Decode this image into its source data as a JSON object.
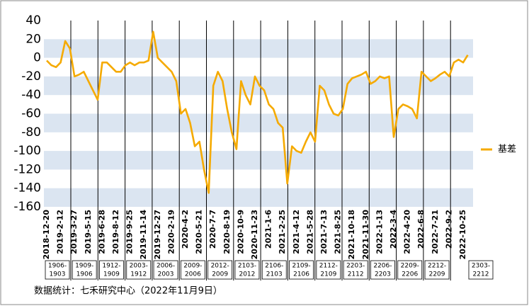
{
  "chart_data": {
    "type": "line",
    "categories": [
      "2018-12-20",
      null,
      null,
      "2019-2-12",
      null,
      null,
      "2019-3-27",
      null,
      null,
      "2019-5-15",
      null,
      null,
      "2019-6-28",
      null,
      null,
      "2019-8-12",
      null,
      null,
      "2019-9-25",
      null,
      null,
      "2019-11-14",
      null,
      null,
      "2019-12-27",
      null,
      null,
      "2020-2-19",
      null,
      null,
      "2020-4-2",
      null,
      null,
      "2020-5-21",
      null,
      null,
      "2020-7-7",
      null,
      null,
      "2020-8-19",
      null,
      null,
      "2020-10-9",
      null,
      null,
      "2020-11-23",
      null,
      null,
      "2021-1-6",
      null,
      null,
      "2021-2-25",
      null,
      null,
      "2021-4-12",
      null,
      null,
      "2021-5-28",
      null,
      null,
      "2021-7-13",
      null,
      null,
      "2021-8-25",
      null,
      null,
      "2021-10-18",
      null,
      null,
      "2021-11-30",
      null,
      null,
      "2022-1-13",
      null,
      null,
      "2022-3-4",
      null,
      null,
      "2022-4-20",
      null,
      null,
      "2022-6-8",
      null,
      null,
      "2022-7-21",
      null,
      null,
      "2022-9-2",
      null,
      null,
      "2022-10-25",
      null
    ],
    "series": [
      {
        "name": "基差",
        "color": "#f5aa00",
        "values": [
          -3,
          -8,
          -10,
          -5,
          18,
          10,
          -20,
          -18,
          -15,
          -25,
          -35,
          -45,
          -5,
          -5,
          -10,
          -15,
          -15,
          -8,
          -5,
          -8,
          -5,
          -5,
          -3,
          28,
          0,
          -5,
          -10,
          -15,
          -25,
          -60,
          -55,
          -70,
          -95,
          -90,
          -120,
          -145,
          -30,
          -15,
          -25,
          -55,
          -80,
          -98,
          -25,
          -40,
          -50,
          -20,
          -30,
          -35,
          -50,
          -55,
          -70,
          -75,
          -135,
          -95,
          -100,
          -102,
          -90,
          -80,
          -90,
          -30,
          -35,
          -50,
          -60,
          -62,
          -55,
          -28,
          -22,
          -20,
          -18,
          -15,
          -28,
          -25,
          -20,
          -22,
          -20,
          -85,
          -55,
          -50,
          -52,
          -55,
          -65,
          -15,
          -20,
          -25,
          -22,
          -18,
          -15,
          -20,
          -5,
          -2,
          -5,
          3
        ]
      }
    ],
    "ylim": [
      -160,
      40
    ],
    "yticks": [
      40,
      20,
      0,
      -20,
      -40,
      -60,
      -80,
      -100,
      -120,
      -140,
      -160
    ],
    "grid": "bands",
    "legend": "right",
    "periods": [
      [
        "1906-",
        "1903"
      ],
      [
        "1909-",
        "1906"
      ],
      [
        "1912-",
        "1909"
      ],
      [
        "2003-",
        "1912"
      ],
      [
        "2006-",
        "2003"
      ],
      [
        "2009-",
        "2006"
      ],
      [
        "2012-",
        "2009"
      ],
      [
        "2103-",
        "2012"
      ],
      [
        "2106-",
        "2103"
      ],
      [
        "2109-",
        "2106"
      ],
      [
        "2112-",
        "2109"
      ],
      [
        "2203-",
        "2112"
      ],
      [
        "2206-",
        "2203"
      ],
      [
        "2209-",
        "2206"
      ],
      [
        "2212-",
        "2209"
      ],
      [
        "2303-",
        "2212"
      ]
    ],
    "source": "数据统计：七禾研究中心（2022年11月9日）"
  }
}
